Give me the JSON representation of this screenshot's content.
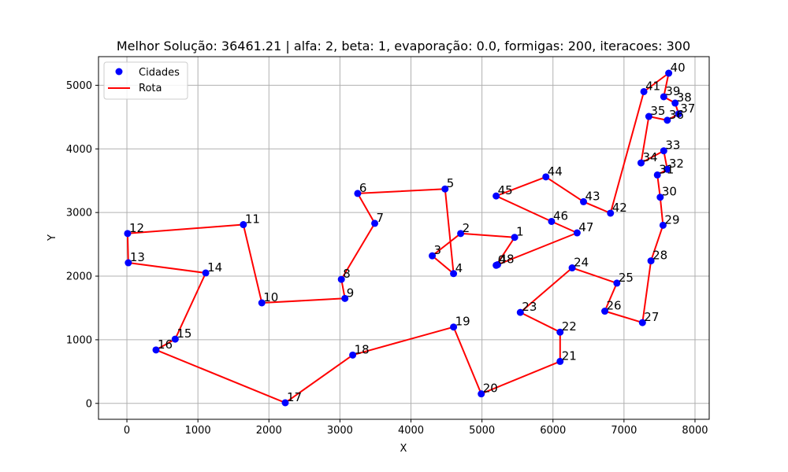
{
  "chart_data": {
    "type": "scatter",
    "title": "Melhor Solução: 36461.21 | alfa: 2, beta: 1, evaporação: 0.0, formigas: 200, iteracoes: 300",
    "xlabel": "X",
    "ylabel": "Y",
    "xlim": [
      -400,
      8200
    ],
    "ylim": [
      -250,
      5450
    ],
    "xticks": [
      0,
      1000,
      2000,
      3000,
      4000,
      5000,
      6000,
      7000,
      8000
    ],
    "yticks": [
      0,
      1000,
      2000,
      3000,
      4000,
      5000
    ],
    "grid": true,
    "legend_position": "top-left",
    "series": [
      {
        "name": "Cidades",
        "kind": "points",
        "color": "#0000ff"
      },
      {
        "name": "Rota",
        "kind": "line",
        "color": "#ff0000"
      }
    ],
    "cities": [
      {
        "id": "0",
        "x": 5200,
        "y": 2170
      },
      {
        "id": "1",
        "x": 5460,
        "y": 2610
      },
      {
        "id": "2",
        "x": 4700,
        "y": 2670
      },
      {
        "id": "3",
        "x": 4300,
        "y": 2320
      },
      {
        "id": "4",
        "x": 4600,
        "y": 2040
      },
      {
        "id": "5",
        "x": 4480,
        "y": 3370
      },
      {
        "id": "6",
        "x": 3250,
        "y": 3300
      },
      {
        "id": "7",
        "x": 3490,
        "y": 2830
      },
      {
        "id": "8",
        "x": 3020,
        "y": 1950
      },
      {
        "id": "9",
        "x": 3070,
        "y": 1650
      },
      {
        "id": "10",
        "x": 1900,
        "y": 1580
      },
      {
        "id": "11",
        "x": 1640,
        "y": 2810
      },
      {
        "id": "12",
        "x": 10,
        "y": 2670
      },
      {
        "id": "13",
        "x": 20,
        "y": 2210
      },
      {
        "id": "14",
        "x": 1110,
        "y": 2050
      },
      {
        "id": "15",
        "x": 680,
        "y": 1010
      },
      {
        "id": "16",
        "x": 410,
        "y": 840
      },
      {
        "id": "17",
        "x": 2230,
        "y": 10
      },
      {
        "id": "18",
        "x": 3180,
        "y": 760
      },
      {
        "id": "19",
        "x": 4600,
        "y": 1200
      },
      {
        "id": "20",
        "x": 4990,
        "y": 150
      },
      {
        "id": "21",
        "x": 6100,
        "y": 660
      },
      {
        "id": "22",
        "x": 6100,
        "y": 1120
      },
      {
        "id": "23",
        "x": 5540,
        "y": 1430
      },
      {
        "id": "24",
        "x": 6270,
        "y": 2130
      },
      {
        "id": "25",
        "x": 6900,
        "y": 1890
      },
      {
        "id": "26",
        "x": 6730,
        "y": 1450
      },
      {
        "id": "27",
        "x": 7260,
        "y": 1270
      },
      {
        "id": "28",
        "x": 7380,
        "y": 2240
      },
      {
        "id": "29",
        "x": 7550,
        "y": 2800
      },
      {
        "id": "30",
        "x": 7510,
        "y": 3240
      },
      {
        "id": "31",
        "x": 7470,
        "y": 3590
      },
      {
        "id": "32",
        "x": 7610,
        "y": 3680
      },
      {
        "id": "33",
        "x": 7560,
        "y": 3970
      },
      {
        "id": "34",
        "x": 7240,
        "y": 3780
      },
      {
        "id": "35",
        "x": 7350,
        "y": 4510
      },
      {
        "id": "36",
        "x": 7610,
        "y": 4450
      },
      {
        "id": "37",
        "x": 7770,
        "y": 4550
      },
      {
        "id": "38",
        "x": 7720,
        "y": 4720
      },
      {
        "id": "39",
        "x": 7560,
        "y": 4820
      },
      {
        "id": "40",
        "x": 7630,
        "y": 5190
      },
      {
        "id": "41",
        "x": 7280,
        "y": 4900
      },
      {
        "id": "42",
        "x": 6810,
        "y": 2990
      },
      {
        "id": "43",
        "x": 6430,
        "y": 3170
      },
      {
        "id": "44",
        "x": 5900,
        "y": 3560
      },
      {
        "id": "45",
        "x": 5200,
        "y": 3260
      },
      {
        "id": "46",
        "x": 5980,
        "y": 2860
      },
      {
        "id": "47",
        "x": 6340,
        "y": 2680
      },
      {
        "id": "48",
        "x": 5220,
        "y": 2180
      }
    ],
    "route": [
      "0",
      "1",
      "2",
      "3",
      "4",
      "5",
      "6",
      "7",
      "8",
      "9",
      "10",
      "11",
      "12",
      "13",
      "14",
      "15",
      "16",
      "17",
      "18",
      "19",
      "20",
      "21",
      "22",
      "23",
      "24",
      "25",
      "26",
      "27",
      "28",
      "29",
      "30",
      "31",
      "32",
      "33",
      "34",
      "35",
      "36",
      "37",
      "38",
      "39",
      "40",
      "41",
      "42",
      "43",
      "44",
      "45",
      "46",
      "47",
      "48",
      "0"
    ]
  },
  "legend": {
    "items": [
      {
        "label": "Cidades"
      },
      {
        "label": "Rota"
      }
    ]
  }
}
